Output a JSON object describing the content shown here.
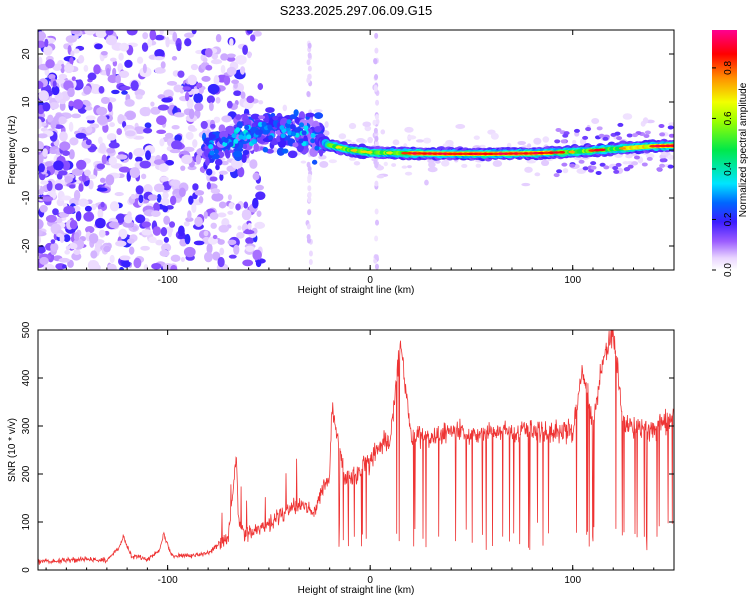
{
  "title": "S233.2025.297.06.09.G15",
  "colors": {
    "snr_line": "#ee3333",
    "spectrum_core": "#dd0000",
    "colormap": [
      "#ffffff",
      "#e2c9ff",
      "#8f4dff",
      "#5a00e0",
      "#2a2aff",
      "#00d8ff",
      "#00e84a",
      "#f2ff00",
      "#ff9000",
      "#ff0000",
      "#ff0090"
    ]
  },
  "chart_data": [
    {
      "type": "heatmap",
      "xlabel": "Height of straight line (km)",
      "ylabel": "Frequency (Hz)",
      "xlim": [
        -164,
        150
      ],
      "ylim": [
        -25,
        25
      ],
      "xticks": [
        {
          "v": -100,
          "label": "-100"
        },
        {
          "v": 0,
          "label": "0"
        },
        {
          "v": 100,
          "label": "100"
        }
      ],
      "yticks": [
        {
          "v": -20,
          "label": "-20"
        },
        {
          "v": -10,
          "label": "-10"
        },
        {
          "v": 0,
          "label": "0"
        },
        {
          "v": 10,
          "label": "10"
        },
        {
          "v": 20,
          "label": "20"
        }
      ],
      "colorbar": {
        "label": "Normalized spectral amplitude",
        "range": [
          0,
          0.95
        ],
        "ticks": [
          {
            "v": 0.0,
            "label": "0.0"
          },
          {
            "v": 0.2,
            "label": "0.2"
          },
          {
            "v": 0.4,
            "label": "0.4"
          },
          {
            "v": 0.6,
            "label": "0.6"
          },
          {
            "v": 0.8,
            "label": "0.8"
          }
        ]
      },
      "dominant_frequency_track": {
        "x": [
          -80,
          -60,
          -40,
          -30,
          -20,
          -10,
          0,
          20,
          40,
          60,
          80,
          100,
          120,
          140,
          150
        ],
        "y": [
          1,
          3,
          4,
          3,
          1,
          0,
          -0.5,
          -0.7,
          -0.8,
          -0.8,
          -0.7,
          -0.4,
          0.2,
          0.8,
          0.9
        ]
      }
    },
    {
      "type": "line",
      "xlabel": "Height of straight line (km)",
      "ylabel": "SNR (10 * v/v)",
      "xlim": [
        -164,
        150
      ],
      "ylim": [
        0,
        500
      ],
      "xticks": [
        {
          "v": -100,
          "label": "-100"
        },
        {
          "v": 0,
          "label": "0"
        },
        {
          "v": 100,
          "label": "100"
        }
      ],
      "yticks": [
        {
          "v": 0,
          "label": "0"
        },
        {
          "v": 100,
          "label": "100"
        },
        {
          "v": 200,
          "label": "200"
        },
        {
          "v": 300,
          "label": "300"
        },
        {
          "v": 400,
          "label": "400"
        },
        {
          "v": 500,
          "label": "500"
        }
      ],
      "series": [
        {
          "x": [
            -164,
            -150,
            -140,
            -130,
            -124,
            -122,
            -118,
            -110,
            -104,
            -102,
            -98,
            -90,
            -80,
            -70,
            -66,
            -65,
            -62,
            -55,
            -45,
            -35,
            -28,
            -20,
            -19,
            -12,
            -5,
            0,
            5,
            10,
            15,
            20,
            30,
            40,
            50,
            60,
            70,
            80,
            90,
            100,
            105,
            110,
            115,
            120,
            125,
            130,
            140,
            150
          ],
          "y": [
            18,
            20,
            22,
            20,
            45,
            70,
            30,
            22,
            40,
            75,
            30,
            30,
            35,
            70,
            240,
            100,
            70,
            85,
            110,
            140,
            120,
            200,
            340,
            190,
            210,
            230,
            260,
            270,
            480,
            280,
            270,
            290,
            280,
            290,
            290,
            290,
            285,
            290,
            420,
            300,
            440,
            500,
            300,
            300,
            295,
            320
          ]
        }
      ]
    }
  ]
}
